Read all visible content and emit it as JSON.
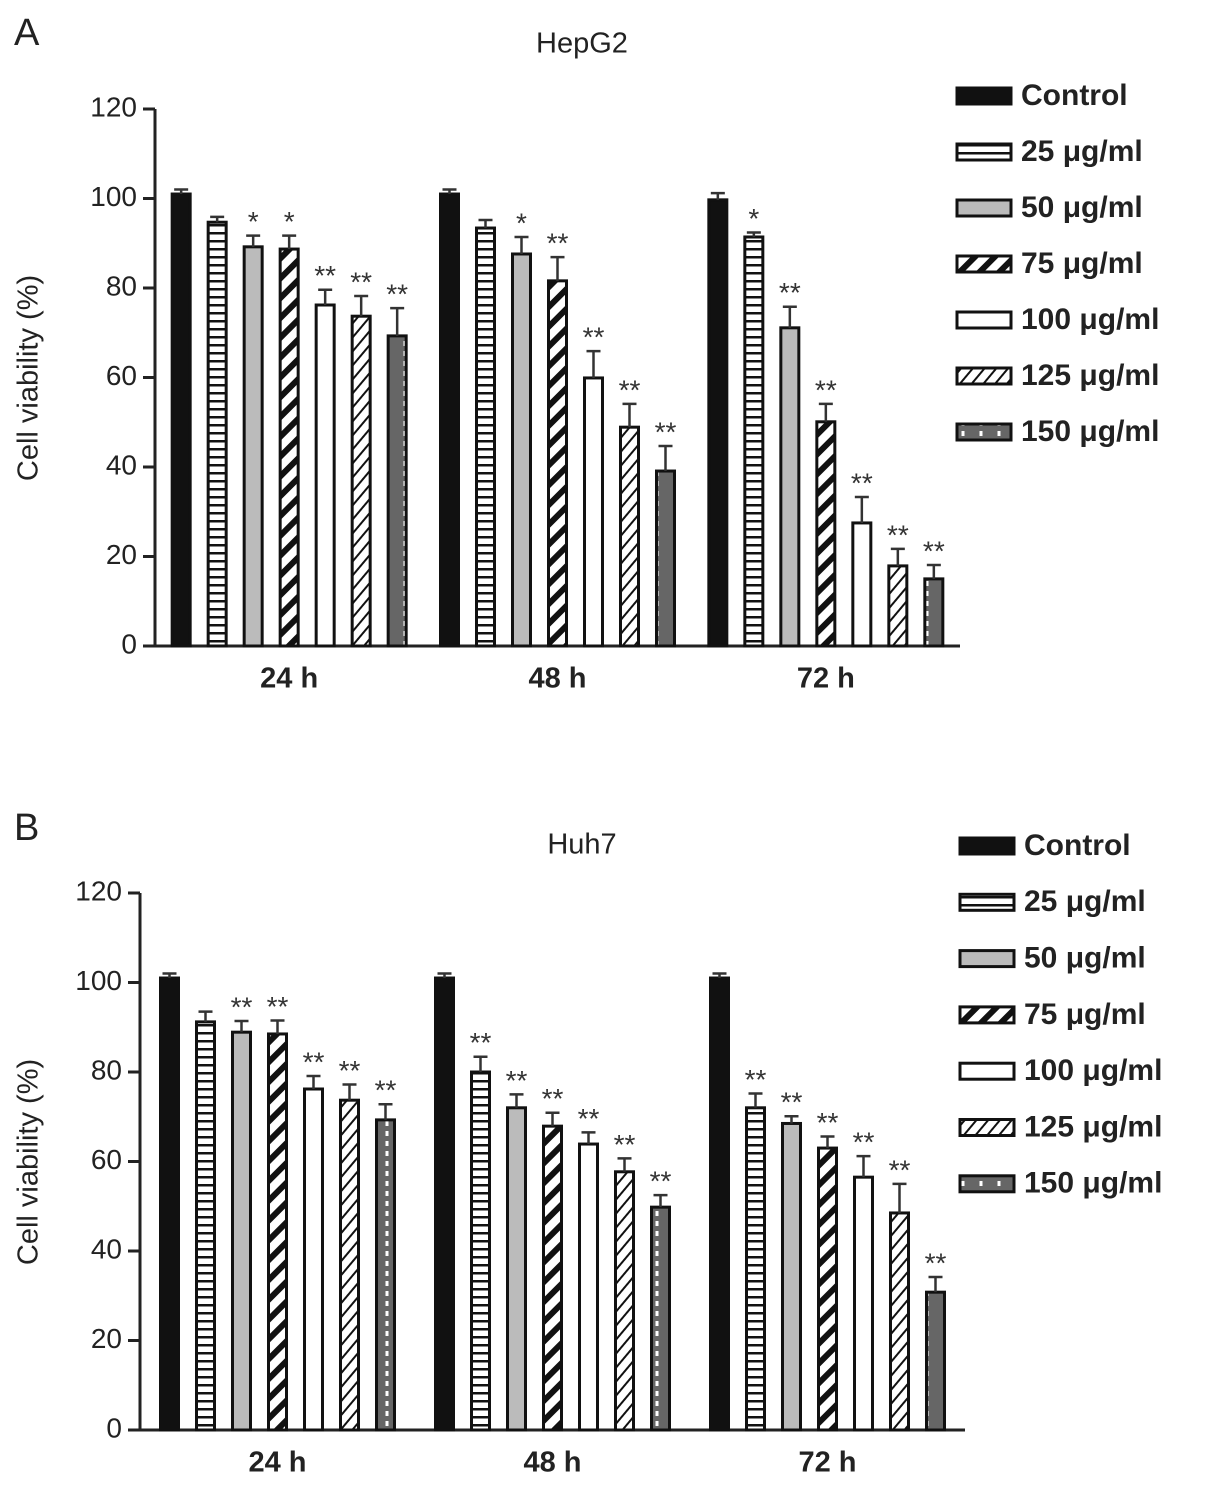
{
  "chart_data": [
    {
      "type": "bar",
      "panel_label": "A",
      "title": "HepG2",
      "ylabel": "Cell viability  (%)",
      "categories": [
        "24 h",
        "48 h",
        "72 h"
      ],
      "ylim": [
        0,
        120
      ],
      "yticks": [
        0,
        20,
        40,
        60,
        80,
        100,
        120
      ],
      "grid": false,
      "legend": "right",
      "series": [
        {
          "name": "Control",
          "color": "#111111",
          "pattern": "solid",
          "values": [
            101,
            101,
            99.7
          ],
          "errors": [
            1,
            1,
            1.5
          ],
          "annotations": [
            null,
            null,
            null
          ]
        },
        {
          "name": "25 μg/ml",
          "color": "#ffffff",
          "pattern": "hlines",
          "values": [
            94.7,
            93.4,
            91.4
          ],
          "errors": [
            1.2,
            1.8,
            1
          ],
          "annotations": [
            null,
            null,
            "*"
          ]
        },
        {
          "name": "50 μg/ml",
          "color": "#bbbbbb",
          "pattern": "solid",
          "values": [
            89.2,
            87.6,
            71.1
          ],
          "errors": [
            2.5,
            3.8,
            4.7
          ],
          "annotations": [
            "*",
            "*",
            "**"
          ]
        },
        {
          "name": "75 μg/ml",
          "color": "#ffffff",
          "pattern": "diagonal-thick",
          "values": [
            88.7,
            81.6,
            50.1
          ],
          "errors": [
            3,
            5.3,
            4
          ],
          "annotations": [
            "*",
            "**",
            "**"
          ]
        },
        {
          "name": "100 μg/ml",
          "color": "#ffffff",
          "pattern": "solid",
          "values": [
            76.2,
            59.9,
            27.5
          ],
          "errors": [
            3.4,
            6,
            5.8
          ],
          "annotations": [
            "**",
            "**",
            "**"
          ]
        },
        {
          "name": "125 μg/ml",
          "color": "#ffffff",
          "pattern": "diagonal-thin",
          "values": [
            73.7,
            48.9,
            17.9
          ],
          "errors": [
            4.5,
            5.2,
            3.8
          ],
          "annotations": [
            "**",
            "**",
            "**"
          ]
        },
        {
          "name": "150 μg/ml",
          "color": "#666666",
          "pattern": "dashed",
          "values": [
            69.3,
            39.1,
            15
          ],
          "errors": [
            6.2,
            5.6,
            3.1
          ],
          "annotations": [
            "**",
            "**",
            "**"
          ]
        }
      ]
    },
    {
      "type": "bar",
      "panel_label": "B",
      "title": "Huh7",
      "ylabel": "Cell viability  (%)",
      "categories": [
        "24 h",
        "48 h",
        "72 h"
      ],
      "ylim": [
        0,
        120
      ],
      "yticks": [
        0,
        20,
        40,
        60,
        80,
        100,
        120
      ],
      "grid": false,
      "legend": "right",
      "series": [
        {
          "name": "Control",
          "color": "#111111",
          "pattern": "solid",
          "values": [
            101,
            101,
            101
          ],
          "errors": [
            1,
            1,
            1
          ],
          "annotations": [
            null,
            null,
            null
          ]
        },
        {
          "name": "25 μg/ml",
          "color": "#ffffff",
          "pattern": "hlines",
          "values": [
            91.2,
            80,
            72
          ],
          "errors": [
            2.3,
            3.4,
            3.2
          ],
          "annotations": [
            null,
            "**",
            "**"
          ]
        },
        {
          "name": "50 μg/ml",
          "color": "#bbbbbb",
          "pattern": "solid",
          "values": [
            88.9,
            72,
            68.5
          ],
          "errors": [
            2.5,
            3,
            1.6
          ],
          "annotations": [
            "**",
            "**",
            "**"
          ]
        },
        {
          "name": "75 μg/ml",
          "color": "#ffffff",
          "pattern": "diagonal-thick",
          "values": [
            88.5,
            67.9,
            63
          ],
          "errors": [
            3,
            3,
            2.6
          ],
          "annotations": [
            "**",
            "**",
            "**"
          ]
        },
        {
          "name": "100 μg/ml",
          "color": "#ffffff",
          "pattern": "solid",
          "values": [
            76.2,
            63.9,
            56.5
          ],
          "errors": [
            2.9,
            2.6,
            4.7
          ],
          "annotations": [
            "**",
            "**",
            "**"
          ]
        },
        {
          "name": "125 μg/ml",
          "color": "#ffffff",
          "pattern": "diagonal-thin",
          "values": [
            73.7,
            57.7,
            48.5
          ],
          "errors": [
            3.5,
            3,
            6.5
          ],
          "annotations": [
            "**",
            "**",
            "**"
          ]
        },
        {
          "name": "150 μg/ml",
          "color": "#666666",
          "pattern": "dashed",
          "values": [
            69.3,
            49.8,
            30.8
          ],
          "errors": [
            3.5,
            2.7,
            3.4
          ],
          "annotations": [
            "**",
            "**",
            "**"
          ]
        }
      ]
    }
  ]
}
